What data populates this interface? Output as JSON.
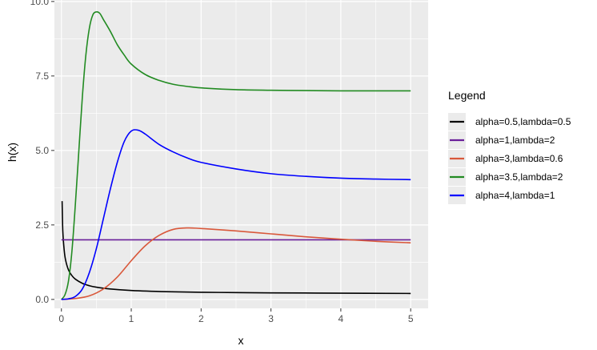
{
  "chart_data": {
    "type": "line",
    "title": "",
    "xlabel": "x",
    "ylabel": "h(x)",
    "xlim": [
      -0.1,
      5.25
    ],
    "ylim": [
      -0.3,
      10.05
    ],
    "x_ticks": [
      0,
      1,
      2,
      3,
      4,
      5
    ],
    "y_ticks": [
      0.0,
      2.5,
      5.0,
      7.5,
      10.0
    ],
    "x_tick_labels": [
      "0",
      "1",
      "2",
      "3",
      "4",
      "5"
    ],
    "y_tick_labels": [
      "0.0",
      "2.5",
      "5.0",
      "7.5",
      "10.0"
    ],
    "grid": true,
    "legend": {
      "title": "Legend",
      "position": "right"
    },
    "series": [
      {
        "name": "alpha=0.5,lambda=0.5",
        "color": "#000000",
        "x": [
          0.01,
          0.02,
          0.04,
          0.06,
          0.1,
          0.15,
          0.2,
          0.3,
          0.4,
          0.5,
          0.7,
          1.0,
          1.5,
          2.0,
          2.5,
          3.0,
          4.0,
          5.0
        ],
        "y": [
          3.3,
          2.3,
          1.65,
          1.32,
          1.0,
          0.8,
          0.68,
          0.54,
          0.46,
          0.41,
          0.35,
          0.3,
          0.26,
          0.24,
          0.23,
          0.22,
          0.21,
          0.2
        ]
      },
      {
        "name": "alpha=1,lambda=2",
        "color": "#6a1f9a",
        "x": [
          0.0,
          5.0
        ],
        "y": [
          2.0,
          2.0
        ]
      },
      {
        "name": "alpha=3,lambda=0.6",
        "color": "#d9583b",
        "x": [
          0.0,
          0.2,
          0.4,
          0.6,
          0.8,
          1.0,
          1.2,
          1.4,
          1.6,
          1.8,
          2.0,
          2.5,
          3.0,
          3.5,
          4.0,
          4.5,
          5.0
        ],
        "y": [
          0.0,
          0.03,
          0.12,
          0.35,
          0.75,
          1.3,
          1.8,
          2.15,
          2.35,
          2.4,
          2.38,
          2.3,
          2.2,
          2.1,
          2.02,
          1.95,
          1.9
        ]
      },
      {
        "name": "alpha=3.5,lambda=2",
        "color": "#228b22",
        "x": [
          0.0,
          0.05,
          0.1,
          0.15,
          0.2,
          0.25,
          0.3,
          0.35,
          0.4,
          0.45,
          0.5,
          0.55,
          0.6,
          0.7,
          0.8,
          0.9,
          1.0,
          1.2,
          1.4,
          1.6,
          1.8,
          2.0,
          2.5,
          3.0,
          3.5,
          4.0,
          4.5,
          5.0
        ],
        "y": [
          0.0,
          0.15,
          0.6,
          1.6,
          3.2,
          5.0,
          6.8,
          8.2,
          9.1,
          9.55,
          9.65,
          9.6,
          9.4,
          9.0,
          8.55,
          8.2,
          7.9,
          7.55,
          7.35,
          7.22,
          7.15,
          7.1,
          7.04,
          7.02,
          7.01,
          7.0,
          7.0,
          7.0
        ]
      },
      {
        "name": "alpha=4,lambda=1",
        "color": "#0000ff",
        "x": [
          0.0,
          0.1,
          0.2,
          0.3,
          0.4,
          0.5,
          0.6,
          0.7,
          0.8,
          0.9,
          1.0,
          1.1,
          1.2,
          1.4,
          1.6,
          1.8,
          2.0,
          2.5,
          3.0,
          3.5,
          4.0,
          4.5,
          5.0
        ],
        "y": [
          0.0,
          0.02,
          0.1,
          0.35,
          0.9,
          1.7,
          2.7,
          3.7,
          4.6,
          5.3,
          5.65,
          5.68,
          5.55,
          5.2,
          4.95,
          4.75,
          4.6,
          4.38,
          4.22,
          4.13,
          4.07,
          4.04,
          4.02
        ]
      }
    ]
  }
}
